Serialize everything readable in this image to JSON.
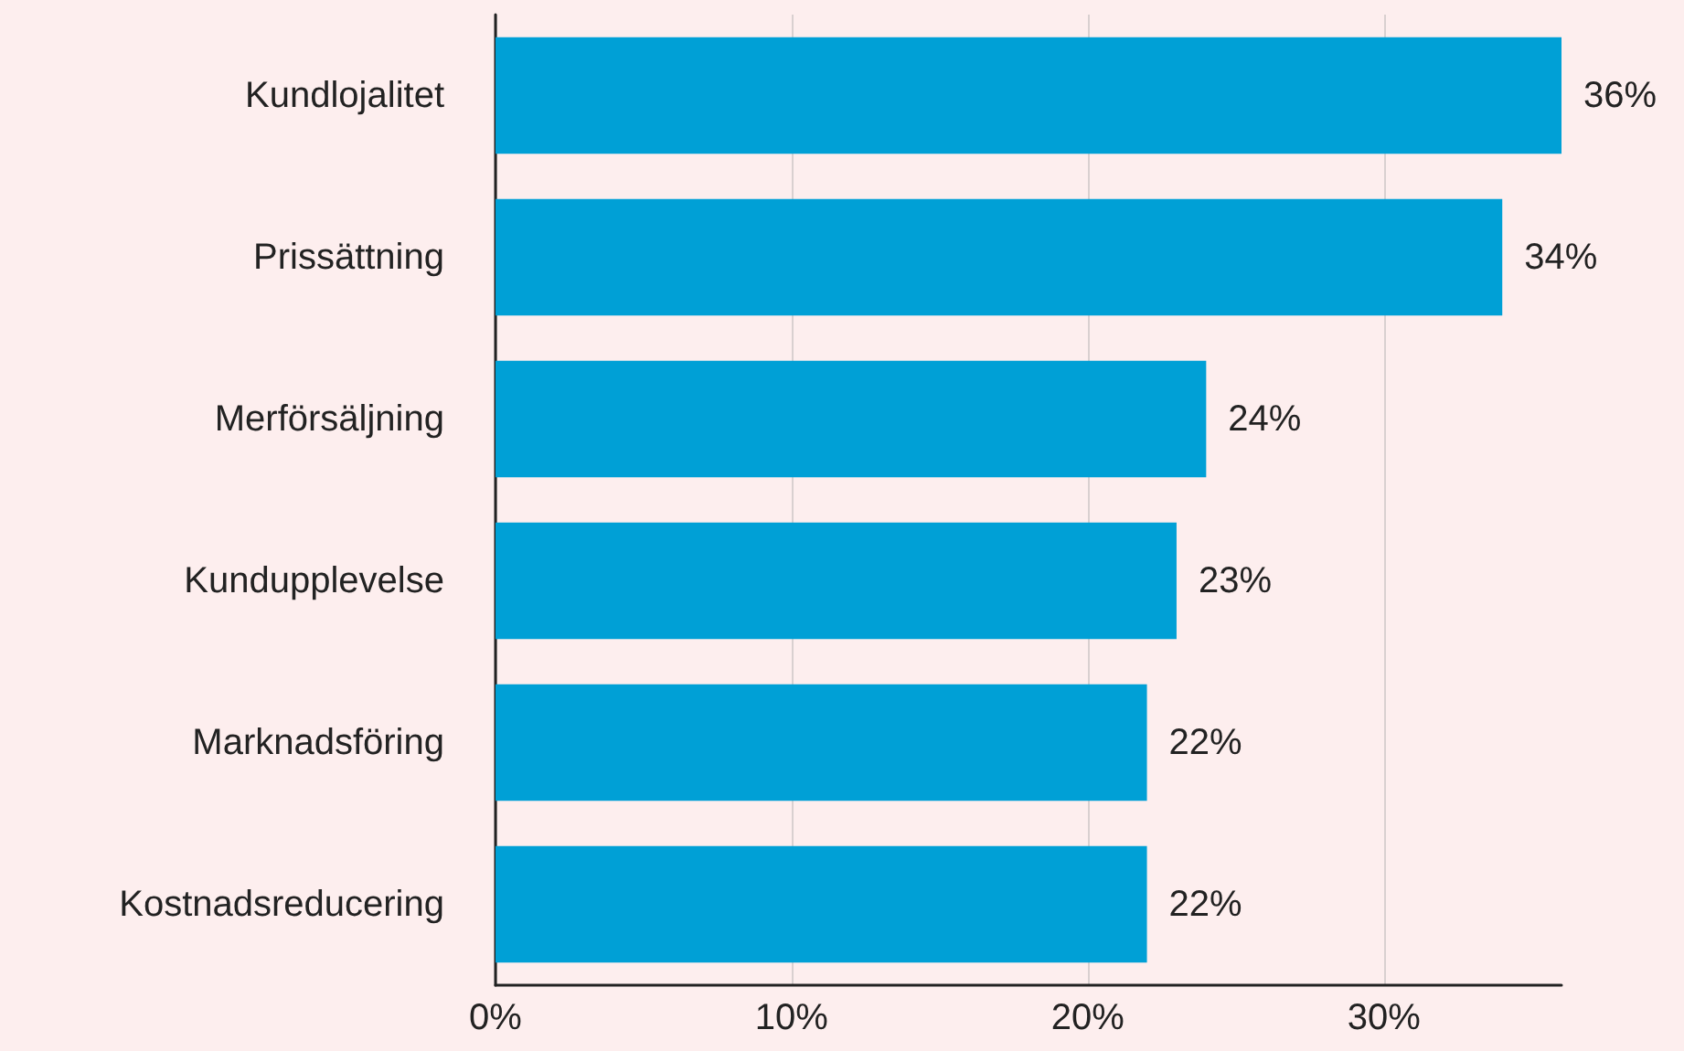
{
  "chart_data": {
    "type": "bar",
    "orientation": "horizontal",
    "categories": [
      "Kundlojalitet",
      "Prissättning",
      "Merförsäljning",
      "Kundupplevelse",
      "Marknadsföring",
      "Kostnadsreducering"
    ],
    "values": [
      36,
      34,
      24,
      23,
      22,
      22
    ],
    "color": "#00a0d6",
    "value_labels": [
      "36%",
      "34%",
      "24%",
      "23%",
      "22%",
      "22%"
    ],
    "xlim": [
      0,
      36
    ],
    "xticks": [
      {
        "value": 0,
        "label": "0%"
      },
      {
        "value": 10,
        "label": "10%"
      },
      {
        "value": 20,
        "label": "20%"
      },
      {
        "value": 30,
        "label": "30%"
      }
    ],
    "grid": "x"
  }
}
